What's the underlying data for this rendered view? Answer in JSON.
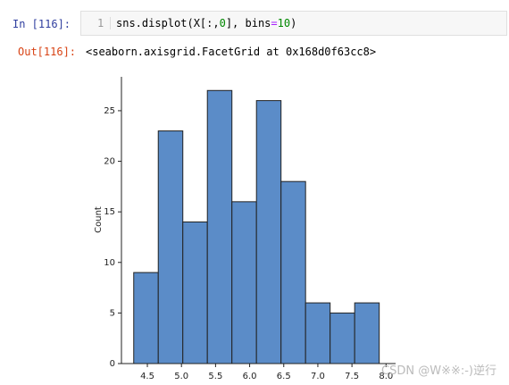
{
  "cell": {
    "in_prompt": "In  [116]:",
    "line_number": "1",
    "code": [
      "sns.displot(X[:,",
      "0",
      "], bins",
      "=",
      "10",
      ")"
    ],
    "out_prompt": "Out[116]:",
    "output": "<seaborn.axisgrid.FacetGrid at 0x168d0f63cc8>"
  },
  "watermark": "CSDN @W※※:-)逆行",
  "chart_data": {
    "type": "histogram",
    "ylabel": "Count",
    "color": "#5b8cc8",
    "bins": [
      4.3,
      4.66,
      5.02,
      5.38,
      5.74,
      6.1,
      6.46,
      6.82,
      7.18,
      7.54,
      7.9
    ],
    "values": [
      9,
      23,
      14,
      27,
      16,
      26,
      18,
      6,
      5,
      6
    ],
    "xlim": [
      4.12,
      8.14
    ],
    "xticks": [
      4.5,
      {
        "value": 5,
        "label": "5.0"
      },
      5.5,
      {
        "value": 6,
        "label": "6.0"
      },
      6.5,
      {
        "value": 7,
        "label": "7.0"
      },
      7.5,
      {
        "value": 8,
        "label": "8.0"
      }
    ],
    "ylim": [
      0,
      28.35
    ],
    "yticks": [
      0,
      5,
      10,
      15,
      20,
      25
    ]
  }
}
